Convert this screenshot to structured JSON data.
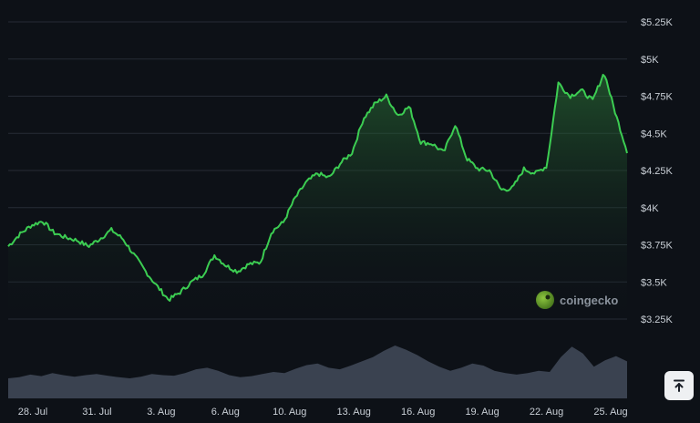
{
  "chart_data": {
    "type": "area",
    "x_tick_labels": [
      "28. Jul",
      "31. Jul",
      "3. Aug",
      "6. Aug",
      "10. Aug",
      "13. Aug",
      "16. Aug",
      "19. Aug",
      "22. Aug",
      "25. Aug"
    ],
    "y_tick_labels": [
      "$5.25K",
      "$5K",
      "$4.75K",
      "$4.5K",
      "$4.25K",
      "$4K",
      "$3.75K",
      "$3.5K",
      "$3.25K"
    ],
    "y_tick_values": [
      5250,
      5000,
      4750,
      4500,
      4250,
      4000,
      3750,
      3500,
      3250
    ],
    "ylim": [
      3250,
      5250
    ],
    "x_dates": [
      "Jul 26",
      "Jul 27",
      "Jul 28",
      "Jul 29",
      "Jul 30",
      "Jul 31",
      "Aug 1",
      "Aug 2",
      "Aug 3",
      "Aug 4",
      "Aug 5",
      "Aug 6",
      "Aug 7",
      "Aug 8",
      "Aug 9",
      "Aug 10",
      "Aug 11",
      "Aug 12",
      "Aug 13",
      "Aug 14",
      "Aug 15",
      "Aug 16",
      "Aug 17",
      "Aug 18",
      "Aug 19",
      "Aug 20",
      "Aug 21",
      "Aug 22",
      "Aug 23",
      "Aug 24",
      "Aug 25",
      "Aug 26"
    ],
    "price": {
      "values": [
        3740,
        3820,
        3880,
        3910,
        3830,
        3800,
        3780,
        3740,
        3790,
        3850,
        3790,
        3680,
        3570,
        3470,
        3380,
        3430,
        3500,
        3550,
        3680,
        3610,
        3570,
        3620,
        3630,
        3840,
        3900,
        4060,
        4170,
        4230,
        4200,
        4300,
        4370,
        4600,
        4700,
        4750,
        4620,
        4680,
        4440,
        4430,
        4370,
        4560,
        4330,
        4260,
        4250,
        4120,
        4130,
        4260,
        4230,
        4280,
        4840,
        4750,
        4790,
        4720,
        4910,
        4630,
        4380
      ],
      "color": "#3ccd52"
    },
    "volume": {
      "values": [
        0.38,
        0.4,
        0.45,
        0.42,
        0.48,
        0.44,
        0.41,
        0.44,
        0.46,
        0.43,
        0.4,
        0.38,
        0.41,
        0.46,
        0.44,
        0.43,
        0.48,
        0.55,
        0.58,
        0.52,
        0.44,
        0.4,
        0.42,
        0.46,
        0.5,
        0.48,
        0.56,
        0.63,
        0.66,
        0.58,
        0.55,
        0.62,
        0.7,
        0.78,
        0.9,
        1.0,
        0.92,
        0.82,
        0.7,
        0.6,
        0.52,
        0.58,
        0.66,
        0.62,
        0.52,
        0.48,
        0.45,
        0.48,
        0.52,
        0.5,
        0.78,
        0.98,
        0.85,
        0.6,
        0.72,
        0.8,
        0.7
      ],
      "color": "#3a4250"
    },
    "grid": true,
    "y_axis_position": "right"
  },
  "watermark": {
    "text": "coingecko"
  },
  "scroll_top_icon": "arrow-up-to-line-icon"
}
